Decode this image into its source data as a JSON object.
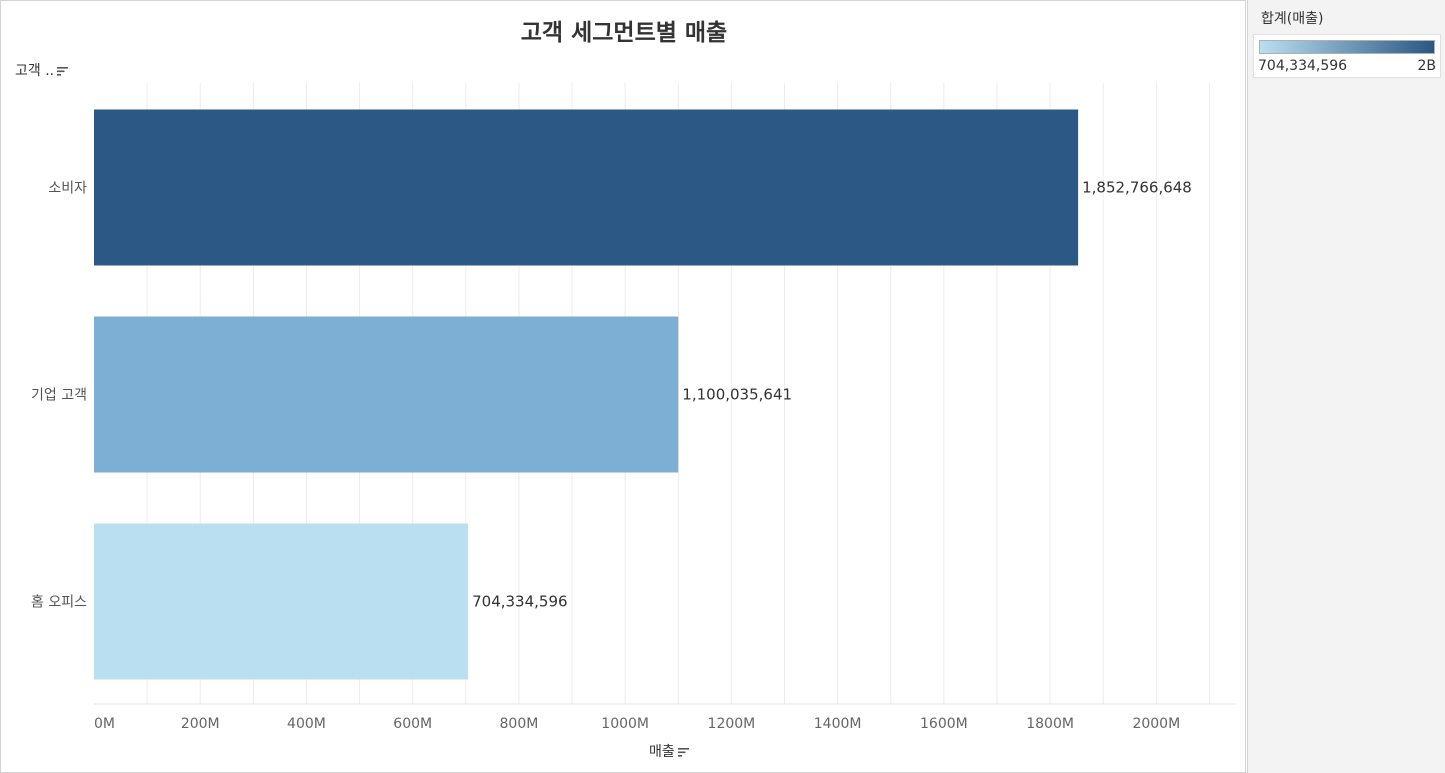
{
  "title": "고객 세그먼트별 매출",
  "row_field_label": "고객 ..",
  "x_axis_label": "매출",
  "legend": {
    "title": "합계(매출)",
    "min_label": "704,334,596",
    "max_label": "2B",
    "color_low": "#b9dff1",
    "color_high": "#2a5783"
  },
  "chart_data": {
    "type": "bar",
    "orientation": "horizontal",
    "title": "고객 세그먼트별 매출",
    "xlabel": "매출",
    "ylabel": "고객 ..",
    "categories": [
      "소비자",
      "기업 고객",
      "홈 오피스"
    ],
    "values": [
      1852766648,
      1100035641,
      704334596
    ],
    "value_labels": [
      "1,852,766,648",
      "1,100,035,641",
      "704,334,596"
    ],
    "bar_colors": [
      "#2b5885",
      "#7daed4",
      "#b9dff1"
    ],
    "xlim": [
      0,
      2150000000
    ],
    "x_ticks": [
      0,
      200000000,
      400000000,
      600000000,
      800000000,
      1000000000,
      1200000000,
      1400000000,
      1600000000,
      1800000000,
      2000000000
    ],
    "x_tick_labels": [
      "0M",
      "200M",
      "400M",
      "600M",
      "800M",
      "1000M",
      "1200M",
      "1400M",
      "1600M",
      "1800M",
      "2000M"
    ],
    "grid": true
  }
}
